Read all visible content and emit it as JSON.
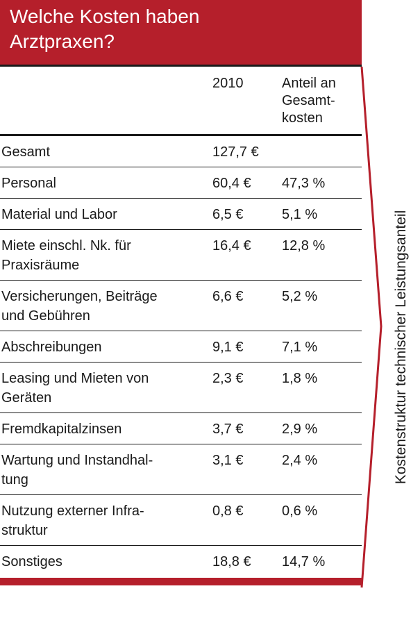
{
  "colors": {
    "accent": "#b51f2b",
    "text": "#1a1a1a",
    "background": "#ffffff"
  },
  "header": {
    "title_line1": "Welche Kosten haben",
    "title_line2": "Arztpraxen?"
  },
  "side_label": "Kostenstruktur technischer Leistungsanteil",
  "chart_data": {
    "type": "table",
    "title": "Welche Kosten haben Arztpraxen?",
    "columns": [
      "",
      "2010",
      "Anteil an Gesamt-kosten"
    ],
    "column_header_lines": {
      "year": [
        "2010"
      ],
      "share": [
        "Anteil an",
        "Gesamt-",
        "kosten"
      ]
    },
    "rows": [
      {
        "label_lines": [
          "Gesamt"
        ],
        "value": "127,7 €",
        "share": ""
      },
      {
        "label_lines": [
          "Personal"
        ],
        "value": "60,4 €",
        "share": "47,3 %"
      },
      {
        "label_lines": [
          "Material und Labor"
        ],
        "value": "6,5 €",
        "share": "5,1 %"
      },
      {
        "label_lines": [
          "Miete einschl. Nk. für",
          "Praxisräume"
        ],
        "value": "16,4 €",
        "share": "12,8 %"
      },
      {
        "label_lines": [
          "Versicherungen, Beiträge",
          "und Gebühren"
        ],
        "value": "6,6 €",
        "share": "5,2 %"
      },
      {
        "label_lines": [
          "Abschreibungen"
        ],
        "value": "9,1 €",
        "share": "7,1 %"
      },
      {
        "label_lines": [
          "Leasing und Mieten von",
          "Geräten"
        ],
        "value": "2,3 €",
        "share": "1,8 %"
      },
      {
        "label_lines": [
          "Fremdkapitalzinsen"
        ],
        "value": "3,7 €",
        "share": "2,9 %"
      },
      {
        "label_lines": [
          "Wartung und Instandhal-",
          "tung"
        ],
        "value": "3,1 €",
        "share": "2,4 %"
      },
      {
        "label_lines": [
          "Nutzung externer Infra-",
          "struktur"
        ],
        "value": "0,8 €",
        "share": "0,6 %"
      },
      {
        "label_lines": [
          "Sonstiges"
        ],
        "value": "18,8 €",
        "share": "14,7 %"
      }
    ]
  }
}
